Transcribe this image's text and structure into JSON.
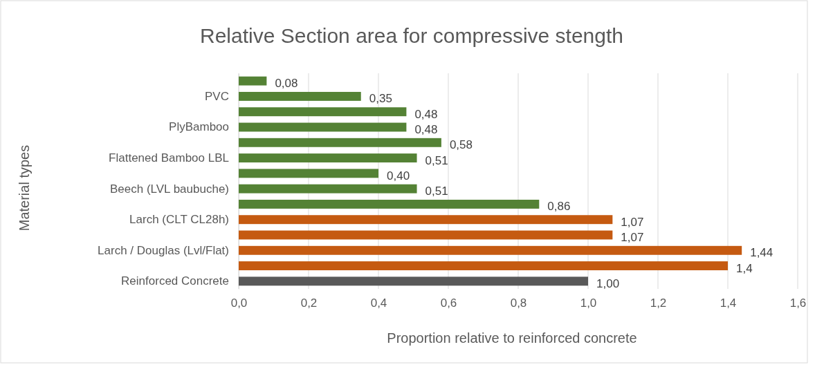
{
  "chart_data": {
    "type": "bar",
    "orientation": "horizontal",
    "title": "Relative Section area for compressive stength",
    "xlabel": "Proportion relative to reinforced concrete",
    "ylabel": "Material types",
    "categories": [
      null,
      "PVC",
      null,
      "PlyBamboo",
      null,
      "Flattened Bamboo LBL",
      null,
      "Beech (LVL baubuche)",
      null,
      "Larch (CLT CL28h)",
      null,
      "Larch / Douglas (Lvl/Flat)",
      null,
      "Reinforced Concrete"
    ],
    "values": [
      0.08,
      0.35,
      0.48,
      0.48,
      0.58,
      0.51,
      0.4,
      0.51,
      0.86,
      1.07,
      1.07,
      1.44,
      1.4,
      1.0
    ],
    "value_labels": [
      "0,08",
      "0,35",
      "0,48",
      "0,48",
      "0,58",
      "0,51",
      "0,40",
      "0,51",
      "0,86",
      "1,07",
      "1,07",
      "1,44",
      "1,4",
      "1,00"
    ],
    "colors": [
      "#548235",
      "#548235",
      "#548235",
      "#548235",
      "#548235",
      "#548235",
      "#548235",
      "#548235",
      "#548235",
      "#c55a11",
      "#c55a11",
      "#c55a11",
      "#c55a11",
      "#595959"
    ],
    "xlim": [
      0,
      1.6
    ],
    "xticks": [
      {
        "value": 0,
        "label": "0,0"
      },
      {
        "value": 0.2,
        "label": "0,2"
      },
      {
        "value": 0.4,
        "label": "0,4"
      },
      {
        "value": 0.6,
        "label": "0,6"
      },
      {
        "value": 0.8,
        "label": "0,8"
      },
      {
        "value": 1.0,
        "label": "1,0"
      },
      {
        "value": 1.2,
        "label": "1,2"
      },
      {
        "value": 1.4,
        "label": "1,4"
      },
      {
        "value": 1.6,
        "label": "1,6"
      }
    ],
    "grid": "x"
  }
}
